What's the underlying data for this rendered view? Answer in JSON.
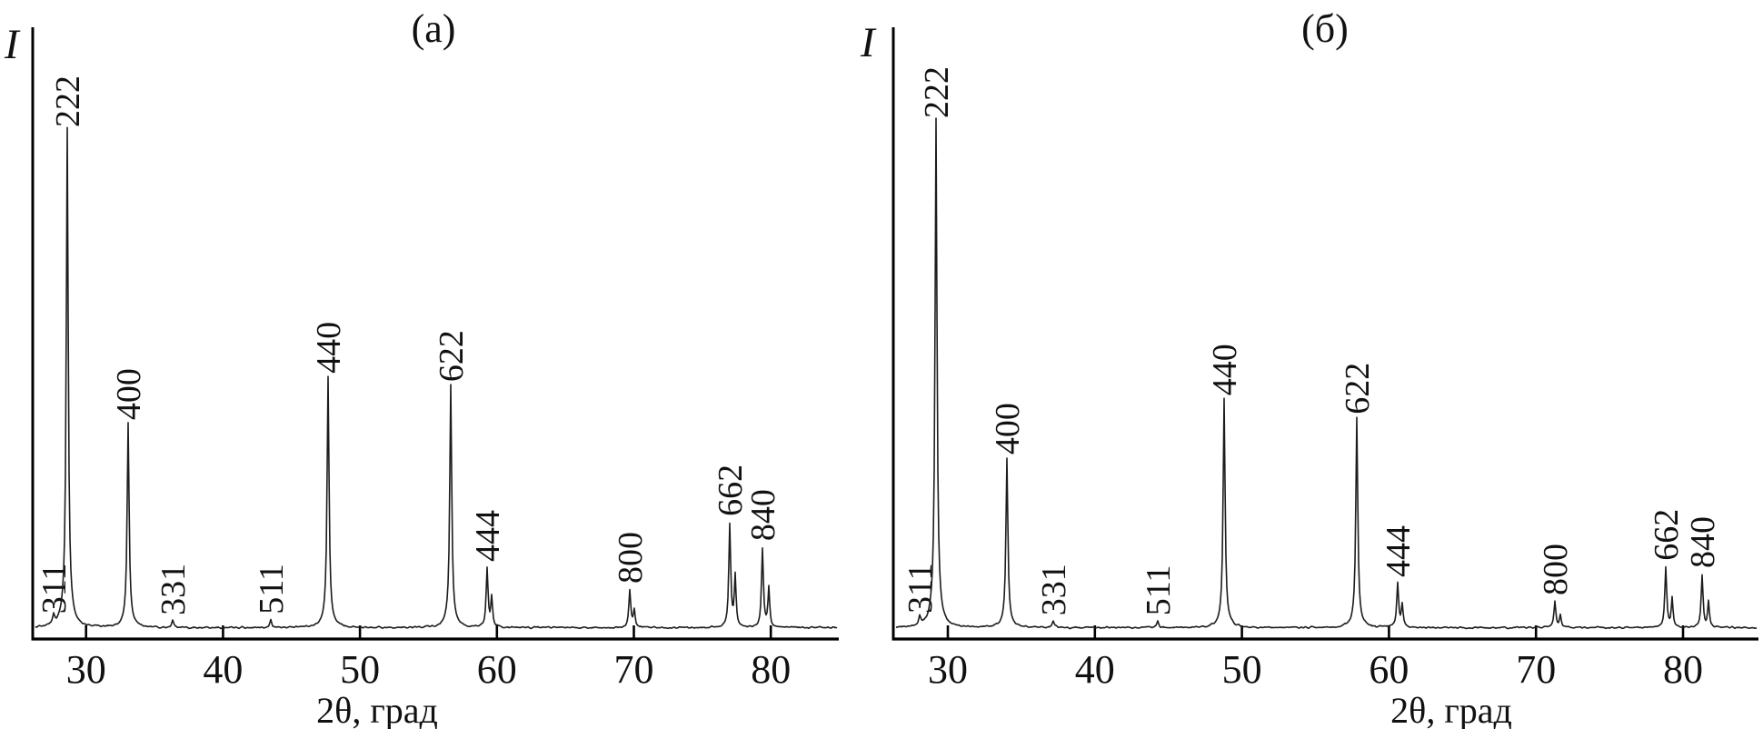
{
  "figure": {
    "background": "#ffffff",
    "trace_color": "#1c1c1c",
    "axis_color": "#000000",
    "text_color": "#111111"
  },
  "chart_data": [
    {
      "type": "line",
      "panel_label": "(а)",
      "ylabel": "I",
      "xlabel": "2θ, град",
      "xlim": [
        26.1,
        85.0
      ],
      "x_ticks": [
        30,
        40,
        50,
        60,
        70,
        80
      ],
      "grid": false,
      "legend": "none",
      "y_axis": "arbitrary intensity, no ticks",
      "peaks": [
        {
          "hkl": "311",
          "two_theta": 27.6,
          "rel_intensity": 18
        },
        {
          "hkl": "222",
          "two_theta": 28.6,
          "rel_intensity": 1000
        },
        {
          "hkl": "400",
          "two_theta": 33.1,
          "rel_intensity": 409
        },
        {
          "hkl": "331",
          "two_theta": 36.3,
          "rel_intensity": 15
        },
        {
          "hkl": "511",
          "two_theta": 43.5,
          "rel_intensity": 17
        },
        {
          "hkl": "440",
          "two_theta": 47.7,
          "rel_intensity": 503
        },
        {
          "hkl": "622",
          "two_theta": 56.6,
          "rel_intensity": 486
        },
        {
          "hkl": "444",
          "two_theta": 59.3,
          "rel_intensity": 123,
          "alpha2_delta_deg": 0.3,
          "alpha2_ratio": 0.5
        },
        {
          "hkl": "800",
          "two_theta": 69.7,
          "rel_intensity": 79,
          "alpha2_delta_deg": 0.35,
          "alpha2_ratio": 0.45
        },
        {
          "hkl": "662",
          "two_theta": 77.0,
          "rel_intensity": 215,
          "alpha2_delta_deg": 0.42,
          "alpha2_ratio": 0.5
        },
        {
          "hkl": "840",
          "two_theta": 79.4,
          "rel_intensity": 165,
          "alpha2_delta_deg": 0.44,
          "alpha2_ratio": 0.5
        }
      ]
    },
    {
      "type": "line",
      "panel_label": "(б)",
      "ylabel": "I",
      "xlabel": "2θ, град",
      "xlim": [
        26.3,
        85.1
      ],
      "x_ticks": [
        30,
        40,
        50,
        60,
        70,
        80
      ],
      "grid": false,
      "legend": "none",
      "y_axis": "arbitrary intensity, no ticks",
      "peaks": [
        {
          "hkl": "311",
          "two_theta": 28.1,
          "rel_intensity": 18
        },
        {
          "hkl": "222",
          "two_theta": 29.2,
          "rel_intensity": 1000
        },
        {
          "hkl": "400",
          "two_theta": 34.0,
          "rel_intensity": 333
        },
        {
          "hkl": "331",
          "two_theta": 37.2,
          "rel_intensity": 14
        },
        {
          "hkl": "511",
          "two_theta": 44.3,
          "rel_intensity": 14
        },
        {
          "hkl": "440",
          "two_theta": 48.8,
          "rel_intensity": 450
        },
        {
          "hkl": "622",
          "two_theta": 57.8,
          "rel_intensity": 413
        },
        {
          "hkl": "444",
          "two_theta": 60.6,
          "rel_intensity": 90,
          "alpha2_delta_deg": 0.31,
          "alpha2_ratio": 0.5
        },
        {
          "hkl": "800",
          "two_theta": 71.3,
          "rel_intensity": 54,
          "alpha2_delta_deg": 0.37,
          "alpha2_ratio": 0.45
        },
        {
          "hkl": "662",
          "two_theta": 78.8,
          "rel_intensity": 123,
          "alpha2_delta_deg": 0.44,
          "alpha2_ratio": 0.5
        },
        {
          "hkl": "840",
          "two_theta": 81.3,
          "rel_intensity": 108,
          "alpha2_delta_deg": 0.46,
          "alpha2_ratio": 0.5
        }
      ]
    }
  ]
}
